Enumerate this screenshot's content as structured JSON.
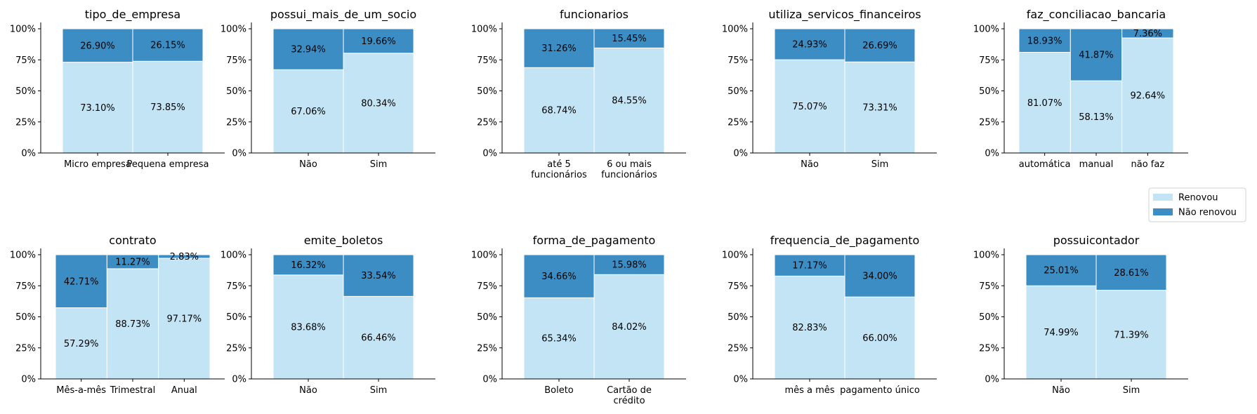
{
  "colors": {
    "renovou": "#c3e4f5",
    "nao_renovou": "#3c8dc4"
  },
  "legend": {
    "items": [
      "Renovou",
      "Não renovou"
    ],
    "placement": "right"
  },
  "chart_data": [
    {
      "type": "bar",
      "stacked": true,
      "title": "tipo_de_empresa",
      "categories": [
        "Micro empresa",
        "Pequena empresa"
      ],
      "series": [
        {
          "name": "Renovou",
          "values": [
            73.1,
            73.85
          ]
        },
        {
          "name": "Não renovou",
          "values": [
            26.9,
            26.15
          ]
        }
      ],
      "labels": [
        [
          "73.10%",
          "73.85%"
        ],
        [
          "26.90%",
          "26.15%"
        ]
      ],
      "yticks": [
        "0%",
        "25%",
        "50%",
        "75%",
        "100%"
      ],
      "ylim": [
        0,
        100
      ]
    },
    {
      "type": "bar",
      "stacked": true,
      "title": "possui_mais_de_um_socio",
      "categories": [
        "Não",
        "Sim"
      ],
      "series": [
        {
          "name": "Renovou",
          "values": [
            67.06,
            80.34
          ]
        },
        {
          "name": "Não renovou",
          "values": [
            32.94,
            19.66
          ]
        }
      ],
      "labels": [
        [
          "67.06%",
          "80.34%"
        ],
        [
          "32.94%",
          "19.66%"
        ]
      ],
      "yticks": [
        "0%",
        "25%",
        "50%",
        "75%",
        "100%"
      ],
      "ylim": [
        0,
        100
      ]
    },
    {
      "type": "bar",
      "stacked": true,
      "title": "funcionarios",
      "categories": [
        "até 5\nfuncionários",
        "6 ou mais\nfuncionários"
      ],
      "series": [
        {
          "name": "Renovou",
          "values": [
            68.74,
            84.55
          ]
        },
        {
          "name": "Não renovou",
          "values": [
            31.26,
            15.45
          ]
        }
      ],
      "labels": [
        [
          "68.74%",
          "84.55%"
        ],
        [
          "31.26%",
          "15.45%"
        ]
      ],
      "yticks": [
        "0%",
        "25%",
        "50%",
        "75%",
        "100%"
      ],
      "ylim": [
        0,
        100
      ]
    },
    {
      "type": "bar",
      "stacked": true,
      "title": "utiliza_servicos_financeiros",
      "categories": [
        "Não",
        "Sim"
      ],
      "series": [
        {
          "name": "Renovou",
          "values": [
            75.07,
            73.31
          ]
        },
        {
          "name": "Não renovou",
          "values": [
            24.93,
            26.69
          ]
        }
      ],
      "labels": [
        [
          "75.07%",
          "73.31%"
        ],
        [
          "24.93%",
          "26.69%"
        ]
      ],
      "yticks": [
        "0%",
        "25%",
        "50%",
        "75%",
        "100%"
      ],
      "ylim": [
        0,
        100
      ]
    },
    {
      "type": "bar",
      "stacked": true,
      "title": "faz_conciliacao_bancaria",
      "categories": [
        "automática",
        "manual",
        "não faz"
      ],
      "series": [
        {
          "name": "Renovou",
          "values": [
            81.07,
            58.13,
            92.64
          ]
        },
        {
          "name": "Não renovou",
          "values": [
            18.93,
            41.87,
            7.36
          ]
        }
      ],
      "labels": [
        [
          "81.07%",
          "58.13%",
          "92.64%"
        ],
        [
          "18.93%",
          "41.87%",
          "7.36%"
        ]
      ],
      "yticks": [
        "0%",
        "25%",
        "50%",
        "75%",
        "100%"
      ],
      "ylim": [
        0,
        100
      ]
    },
    {
      "type": "bar",
      "stacked": true,
      "title": "contrato",
      "categories": [
        "Mês-a-mês",
        "Trimestral",
        "Anual"
      ],
      "series": [
        {
          "name": "Renovou",
          "values": [
            57.29,
            88.73,
            97.17
          ]
        },
        {
          "name": "Não renovou",
          "values": [
            42.71,
            11.27,
            2.83
          ]
        }
      ],
      "labels": [
        [
          "57.29%",
          "88.73%",
          "97.17%"
        ],
        [
          "42.71%",
          "11.27%",
          "2.83%"
        ]
      ],
      "yticks": [
        "0%",
        "25%",
        "50%",
        "75%",
        "100%"
      ],
      "ylim": [
        0,
        100
      ]
    },
    {
      "type": "bar",
      "stacked": true,
      "title": "emite_boletos",
      "categories": [
        "Não",
        "Sim"
      ],
      "series": [
        {
          "name": "Renovou",
          "values": [
            83.68,
            66.46
          ]
        },
        {
          "name": "Não renovou",
          "values": [
            16.32,
            33.54
          ]
        }
      ],
      "labels": [
        [
          "83.68%",
          "66.46%"
        ],
        [
          "16.32%",
          "33.54%"
        ]
      ],
      "yticks": [
        "0%",
        "25%",
        "50%",
        "75%",
        "100%"
      ],
      "ylim": [
        0,
        100
      ]
    },
    {
      "type": "bar",
      "stacked": true,
      "title": "forma_de_pagamento",
      "categories": [
        "Boleto",
        "Cartão de\ncrédito"
      ],
      "series": [
        {
          "name": "Renovou",
          "values": [
            65.34,
            84.02
          ]
        },
        {
          "name": "Não renovou",
          "values": [
            34.66,
            15.98
          ]
        }
      ],
      "labels": [
        [
          "65.34%",
          "84.02%"
        ],
        [
          "34.66%",
          "15.98%"
        ]
      ],
      "yticks": [
        "0%",
        "25%",
        "50%",
        "75%",
        "100%"
      ],
      "ylim": [
        0,
        100
      ]
    },
    {
      "type": "bar",
      "stacked": true,
      "title": "frequencia_de_pagamento",
      "categories": [
        "mês a mês",
        "pagamento único"
      ],
      "series": [
        {
          "name": "Renovou",
          "values": [
            82.83,
            66.0
          ]
        },
        {
          "name": "Não renovou",
          "values": [
            17.17,
            34.0
          ]
        }
      ],
      "labels": [
        [
          "82.83%",
          "66.00%"
        ],
        [
          "17.17%",
          "34.00%"
        ]
      ],
      "yticks": [
        "0%",
        "25%",
        "50%",
        "75%",
        "100%"
      ],
      "ylim": [
        0,
        100
      ]
    },
    {
      "type": "bar",
      "stacked": true,
      "title": "possuicontador",
      "categories": [
        "Não",
        "Sim"
      ],
      "series": [
        {
          "name": "Renovou",
          "values": [
            74.99,
            71.39
          ]
        },
        {
          "name": "Não renovou",
          "values": [
            25.01,
            28.61
          ]
        }
      ],
      "labels": [
        [
          "74.99%",
          "71.39%"
        ],
        [
          "25.01%",
          "28.61%"
        ]
      ],
      "yticks": [
        "0%",
        "25%",
        "50%",
        "75%",
        "100%"
      ],
      "ylim": [
        0,
        100
      ]
    }
  ]
}
